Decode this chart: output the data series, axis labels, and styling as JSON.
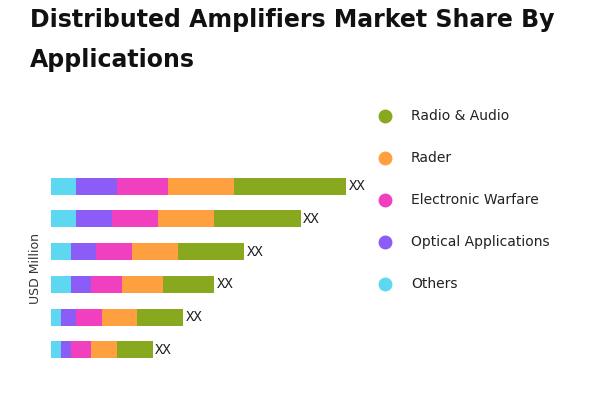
{
  "title_line1": "Distributed Amplifiers Market Share By",
  "title_line2": "Applications",
  "ylabel": "USD Million",
  "bar_label": "XX",
  "background_color": "#ffffff",
  "segment_keys": [
    "Others",
    "Optical Applications",
    "Electronic Warfare",
    "Rader",
    "Radio & Audio"
  ],
  "segments": {
    "Others": {
      "color": "#5DD8F0",
      "values": [
        5,
        5,
        4,
        4,
        2,
        2
      ]
    },
    "Optical Applications": {
      "color": "#8B5CF6",
      "values": [
        8,
        7,
        5,
        4,
        3,
        2
      ]
    },
    "Electronic Warfare": {
      "color": "#F040C0",
      "values": [
        10,
        9,
        7,
        6,
        5,
        4
      ]
    },
    "Rader": {
      "color": "#FFA040",
      "values": [
        13,
        11,
        9,
        8,
        7,
        5
      ]
    },
    "Radio & Audio": {
      "color": "#88A820",
      "values": [
        22,
        17,
        13,
        10,
        9,
        7
      ]
    }
  },
  "legend_order": [
    "Radio & Audio",
    "Rader",
    "Electronic Warfare",
    "Optical Applications",
    "Others"
  ],
  "legend_colors": {
    "Radio & Audio": "#88A820",
    "Rader": "#FFA040",
    "Electronic Warfare": "#F040C0",
    "Optical Applications": "#8B5CF6",
    "Others": "#5DD8F0"
  },
  "bar_height": 0.52,
  "title_fontsize": 17,
  "label_fontsize": 10,
  "legend_fontsize": 10,
  "ylabel_fontsize": 9
}
